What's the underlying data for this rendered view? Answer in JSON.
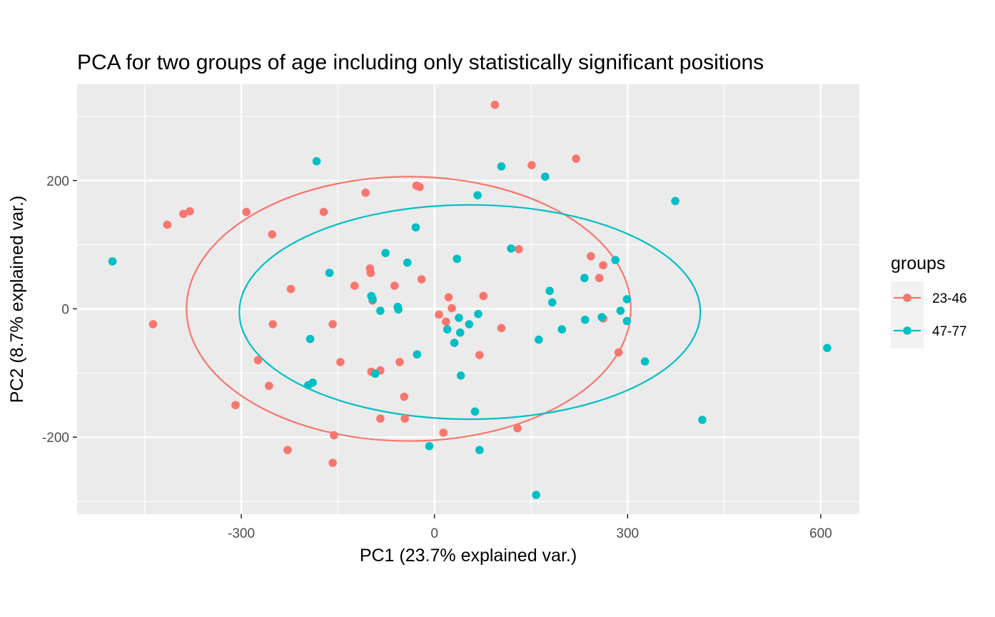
{
  "chart_data": {
    "type": "scatter",
    "title": "PCA for two groups of age including only statistically significant positions",
    "xlabel": "PC1 (23.7% explained var.)",
    "ylabel": "PC2 (8.7% explained var.)",
    "xlim": [
      -555,
      660
    ],
    "ylim": [
      -320,
      350
    ],
    "x_ticks": [
      -300,
      0,
      300,
      600
    ],
    "x_tick_labels": [
      "-300",
      "0",
      "300",
      "600"
    ],
    "y_ticks": [
      -200,
      0,
      200
    ],
    "y_tick_labels": [
      "-200",
      "0",
      "200"
    ],
    "x_minor": [
      -450,
      -150,
      150,
      450
    ],
    "y_minor": [
      -300,
      -100,
      100,
      300
    ],
    "grid": true,
    "legend": {
      "title": "groups",
      "position": "right"
    },
    "ellipses": [
      {
        "series": "23-46",
        "cx": -40,
        "cy": 0,
        "rx": 345,
        "ry": 206
      },
      {
        "series": "47-77",
        "cx": 55,
        "cy": -5,
        "rx": 358,
        "ry": 167
      }
    ],
    "series": [
      {
        "name": "23-46",
        "color": "#F8766D",
        "points": [
          [
            94,
            318
          ],
          [
            220,
            234
          ],
          [
            151,
            224
          ],
          [
            -28,
            192
          ],
          [
            -23,
            190
          ],
          [
            -107,
            181
          ],
          [
            -390,
            148
          ],
          [
            -380,
            152
          ],
          [
            -415,
            131
          ],
          [
            -292,
            151
          ],
          [
            -172,
            151
          ],
          [
            -252,
            116
          ],
          [
            131,
            93
          ],
          [
            243,
            82
          ],
          [
            262,
            68
          ],
          [
            256,
            48
          ],
          [
            -100,
            63
          ],
          [
            -99,
            56
          ],
          [
            -20,
            46
          ],
          [
            -62,
            36
          ],
          [
            -124,
            36
          ],
          [
            -223,
            31
          ],
          [
            22,
            18
          ],
          [
            76,
            20
          ],
          [
            -96,
            13
          ],
          [
            27,
            1
          ],
          [
            7,
            -9
          ],
          [
            18,
            -20
          ],
          [
            104,
            -30
          ],
          [
            -437,
            -24
          ],
          [
            -251,
            -24
          ],
          [
            -158,
            -24
          ],
          [
            262,
            -15
          ],
          [
            286,
            -68
          ],
          [
            70,
            -72
          ],
          [
            -274,
            -80
          ],
          [
            -146,
            -83
          ],
          [
            -54,
            -83
          ],
          [
            -98,
            -98
          ],
          [
            -84,
            -96
          ],
          [
            -47,
            -137
          ],
          [
            -257,
            -120
          ],
          [
            -309,
            -150
          ],
          [
            -84,
            -171
          ],
          [
            -46,
            -171
          ],
          [
            14,
            -193
          ],
          [
            -156,
            -197
          ],
          [
            129,
            -186
          ],
          [
            -228,
            -220
          ],
          [
            -158,
            -240
          ]
        ]
      },
      {
        "name": "47-77",
        "color": "#00BFC4",
        "points": [
          [
            -183,
            230
          ],
          [
            104,
            222
          ],
          [
            172,
            206
          ],
          [
            67,
            177
          ],
          [
            374,
            168
          ],
          [
            -29,
            127
          ],
          [
            -500,
            74
          ],
          [
            -76,
            87
          ],
          [
            -42,
            72
          ],
          [
            35,
            78
          ],
          [
            119,
            94
          ],
          [
            -163,
            56
          ],
          [
            233,
            48
          ],
          [
            281,
            76
          ],
          [
            -98,
            20
          ],
          [
            -96,
            15
          ],
          [
            179,
            28
          ],
          [
            183,
            10
          ],
          [
            -84,
            -3
          ],
          [
            -57,
            3
          ],
          [
            -56,
            -1
          ],
          [
            38,
            -14
          ],
          [
            40,
            -37
          ],
          [
            20,
            -32
          ],
          [
            54,
            -24
          ],
          [
            68,
            -8
          ],
          [
            31,
            -53
          ],
          [
            162,
            -48
          ],
          [
            198,
            -32
          ],
          [
            234,
            -17
          ],
          [
            260,
            -13
          ],
          [
            289,
            -3
          ],
          [
            299,
            15
          ],
          [
            299,
            -19
          ],
          [
            -193,
            -47
          ],
          [
            -27,
            -71
          ],
          [
            327,
            -82
          ],
          [
            -92,
            -101
          ],
          [
            -189,
            -115
          ],
          [
            -196,
            -119
          ],
          [
            41,
            -104
          ],
          [
            63,
            -160
          ],
          [
            416,
            -173
          ],
          [
            610,
            -61
          ],
          [
            -8,
            -214
          ],
          [
            70,
            -220
          ],
          [
            158,
            -290
          ]
        ]
      }
    ]
  }
}
